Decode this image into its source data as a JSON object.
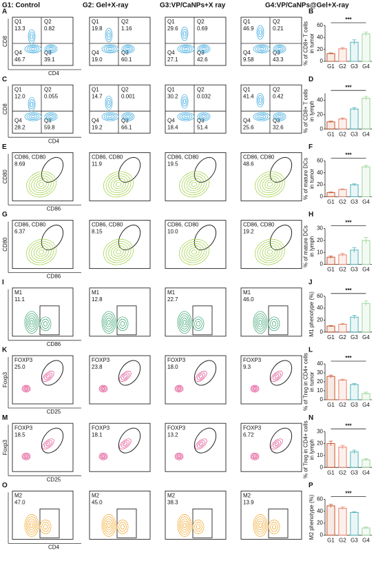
{
  "headers": [
    "G1: Control",
    "G2: Gel+X-ray",
    "G3:VP/CaNPs+X ray",
    "G4:VP/CaNPs@Gel+X-ray"
  ],
  "flow_rows": [
    {
      "letter": "A",
      "y_label": "CD8",
      "x_label": "CD4",
      "color": "#2ea3dc",
      "groups": [
        {
          "quadrants": [
            {
              "label": "Q1",
              "value": "13.3"
            },
            {
              "label": "Q2",
              "value": "0.82"
            },
            {
              "label": "Q4",
              "value": "46.7"
            },
            {
              "label": "Q3",
              "value": "39.1"
            }
          ]
        },
        {
          "quadrants": [
            {
              "label": "Q1",
              "value": "19.8"
            },
            {
              "label": "Q2",
              "value": "1.16"
            },
            {
              "label": "Q4",
              "value": "19.0"
            },
            {
              "label": "Q3",
              "value": "60.1"
            }
          ]
        },
        {
          "quadrants": [
            {
              "label": "Q1",
              "value": "29.6"
            },
            {
              "label": "Q2",
              "value": "0.69"
            },
            {
              "label": "Q4",
              "value": "27.1"
            },
            {
              "label": "Q3",
              "value": "42.6"
            }
          ]
        },
        {
          "quadrants": [
            {
              "label": "Q1",
              "value": "46.9"
            },
            {
              "label": "Q2",
              "value": "0.21"
            },
            {
              "label": "Q4",
              "value": "9.58"
            },
            {
              "label": "Q3",
              "value": "43.3"
            }
          ]
        }
      ]
    },
    {
      "letter": "C",
      "y_label": "CD8",
      "x_label": "CD4",
      "color": "#2ea3dc",
      "groups": [
        {
          "quadrants": [
            {
              "label": "Q1",
              "value": "12.0"
            },
            {
              "label": "Q2",
              "value": "0.055"
            },
            {
              "label": "Q4",
              "value": "28.2"
            },
            {
              "label": "Q3",
              "value": "59.8"
            }
          ]
        },
        {
          "quadrants": [
            {
              "label": "Q1",
              "value": "14.7"
            },
            {
              "label": "Q2",
              "value": "0.001"
            },
            {
              "label": "Q4",
              "value": "19.2"
            },
            {
              "label": "Q3",
              "value": "66.1"
            }
          ]
        },
        {
          "quadrants": [
            {
              "label": "Q1",
              "value": "30.2"
            },
            {
              "label": "Q2",
              "value": "0.032"
            },
            {
              "label": "Q4",
              "value": "18.4"
            },
            {
              "label": "Q3",
              "value": "51.4"
            }
          ]
        },
        {
          "quadrants": [
            {
              "label": "Q1",
              "value": "41.4"
            },
            {
              "label": "Q2",
              "value": "0.42"
            },
            {
              "label": "Q4",
              "value": "25.6"
            },
            {
              "label": "Q3",
              "value": "32.6"
            }
          ]
        }
      ]
    },
    {
      "letter": "E",
      "y_label": "CD80",
      "x_label": "CD86",
      "color": "#9acd3c",
      "gate": "CD86, CD80",
      "gate_shape": "ellipse",
      "values": [
        "8.69",
        "11.9",
        "19.5",
        "48.6"
      ]
    },
    {
      "letter": "G",
      "y_label": "CD80",
      "x_label": "CD86",
      "color": "#9acd3c",
      "gate": "CD86, CD80",
      "gate_shape": "ellipse",
      "values": [
        "6.37",
        "8.15",
        "10.0",
        "19.2"
      ]
    },
    {
      "letter": "I",
      "x_label": "CD86",
      "color": "#2e9e6a",
      "gate": "M1",
      "gate_shape": "rect",
      "values": [
        "11.1",
        "12.8",
        "22.7",
        "46.0"
      ]
    },
    {
      "letter": "K",
      "y_label": "Foxp3",
      "x_label": "CD25",
      "color": "#e0468c",
      "gate": "FOXP3",
      "gate_shape": "ellipse",
      "values": [
        "25.0",
        "23.8",
        "18.0",
        "9.3"
      ]
    },
    {
      "letter": "M",
      "y_label": "Foxp3",
      "x_label": "CD25",
      "color": "#e0468c",
      "gate": "FOXP3",
      "gate_shape": "ellipse",
      "values": [
        "18.5",
        "18.1",
        "13.2",
        "6.72"
      ]
    },
    {
      "letter": "O",
      "x_label": "CD4",
      "color": "#f2a21f",
      "gate": "M2",
      "gate_shape": "rect",
      "values": [
        "47.0",
        "45.0",
        "38.3",
        "13.9"
      ]
    }
  ],
  "chart_data": [
    {
      "type": "bar",
      "letter": "B",
      "ylabel": [
        "% of CD8+ T cells",
        "in tumor"
      ],
      "categories": [
        "G1",
        "G2",
        "G3",
        "G4"
      ],
      "values": [
        13,
        21,
        32,
        46
      ],
      "errors": [
        1,
        2,
        4,
        3
      ],
      "ylim": [
        0,
        60
      ],
      "yticks": [
        0,
        20,
        40,
        60
      ],
      "significance": "***",
      "colors": [
        "#c8532a",
        "#e8826a",
        "#4fb3b8",
        "#9bd49a"
      ]
    },
    {
      "type": "bar",
      "letter": "D",
      "ylabel": [
        "% of CD8+ T cells",
        "in lymph"
      ],
      "categories": [
        "G1",
        "G2",
        "G3",
        "G4"
      ],
      "values": [
        10,
        14,
        28,
        43
      ],
      "errors": [
        1,
        1.5,
        2,
        2.5
      ],
      "ylim": [
        0,
        50
      ],
      "yticks": [
        0,
        20,
        40
      ],
      "significance": "***",
      "colors": [
        "#c8532a",
        "#e8826a",
        "#4fb3b8",
        "#9bd49a"
      ]
    },
    {
      "type": "bar",
      "letter": "F",
      "ylabel": [
        "% of mature DCs",
        "in tumor"
      ],
      "categories": [
        "G1",
        "G2",
        "G3",
        "G4"
      ],
      "values": [
        7,
        12,
        20,
        50
      ],
      "errors": [
        0.8,
        1,
        1.5,
        2.5
      ],
      "ylim": [
        0,
        60
      ],
      "yticks": [
        0,
        20,
        40,
        60
      ],
      "significance": "***",
      "colors": [
        "#c8532a",
        "#e8826a",
        "#4fb3b8",
        "#9bd49a"
      ]
    },
    {
      "type": "bar",
      "letter": "H",
      "ylabel": [
        "% of mature DCs",
        "in lymph"
      ],
      "categories": [
        "G1",
        "G2",
        "G3",
        "G4"
      ],
      "values": [
        6,
        8,
        12,
        20
      ],
      "errors": [
        1,
        1.2,
        2,
        2.5
      ],
      "ylim": [
        0,
        30
      ],
      "yticks": [
        0,
        10,
        20,
        30
      ],
      "significance": "***",
      "colors": [
        "#c8532a",
        "#e8826a",
        "#4fb3b8",
        "#9bd49a"
      ]
    },
    {
      "type": "bar",
      "letter": "J",
      "ylabel": [
        "M1 phenotype (%)"
      ],
      "categories": [
        "G1",
        "G2",
        "G3",
        "G4"
      ],
      "values": [
        10,
        13,
        25,
        48
      ],
      "errors": [
        1,
        1.5,
        3,
        4
      ],
      "ylim": [
        0,
        60
      ],
      "yticks": [
        0,
        20,
        40,
        60
      ],
      "significance": "***",
      "colors": [
        "#c8532a",
        "#e8826a",
        "#4fb3b8",
        "#9bd49a"
      ]
    },
    {
      "type": "bar",
      "letter": "L",
      "ylabel": [
        "% of Treg in CD4+ cells",
        "in tumor"
      ],
      "categories": [
        "G1",
        "G2",
        "G3",
        "G4"
      ],
      "values": [
        26,
        22,
        17,
        7
      ],
      "errors": [
        1.5,
        1,
        1,
        1.5
      ],
      "ylim": [
        0,
        40
      ],
      "yticks": [
        0,
        10,
        20,
        30,
        40
      ],
      "significance": "***",
      "colors": [
        "#c8532a",
        "#e8826a",
        "#4fb3b8",
        "#9bd49a"
      ]
    },
    {
      "type": "bar",
      "letter": "N",
      "ylabel": [
        "% of Treg in CD4+ cells",
        "in lymph"
      ],
      "categories": [
        "G1",
        "G2",
        "G3",
        "G4"
      ],
      "values": [
        20,
        17,
        13,
        6.5
      ],
      "errors": [
        2,
        1.5,
        1.5,
        0.8
      ],
      "ylim": [
        0,
        30
      ],
      "yticks": [
        0,
        10,
        20,
        30
      ],
      "significance": "***",
      "colors": [
        "#c8532a",
        "#e8826a",
        "#4fb3b8",
        "#9bd49a"
      ]
    },
    {
      "type": "bar",
      "letter": "P",
      "ylabel": [
        "M2 phenotype (%)"
      ],
      "categories": [
        "G1",
        "G2",
        "G3",
        "G4"
      ],
      "values": [
        49,
        45,
        38,
        12
      ],
      "errors": [
        2.5,
        2,
        1,
        1.5
      ],
      "ylim": [
        0,
        60
      ],
      "yticks": [
        0,
        20,
        40,
        60
      ],
      "significance": "***",
      "colors": [
        "#c8532a",
        "#e8826a",
        "#4fb3b8",
        "#9bd49a"
      ]
    }
  ]
}
